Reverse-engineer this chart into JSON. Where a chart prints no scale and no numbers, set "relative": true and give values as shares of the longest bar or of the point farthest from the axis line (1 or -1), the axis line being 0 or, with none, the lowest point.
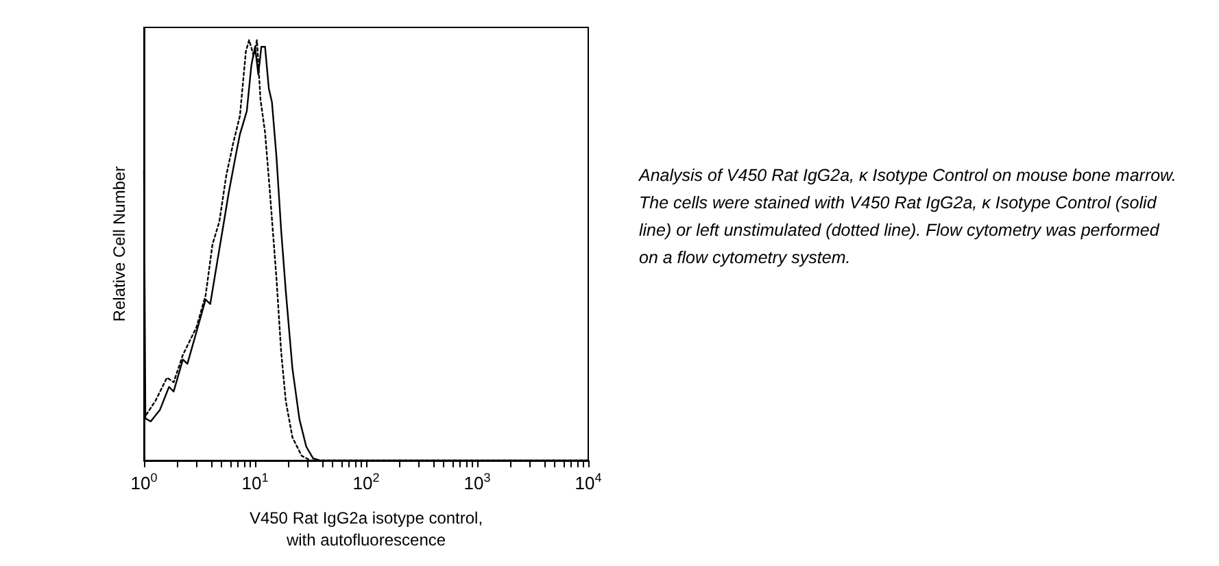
{
  "chart_data": {
    "type": "line",
    "relative": true,
    "log": "x",
    "xlabel": "V450 Rat IgG2a isotype control,\nwith autofluorescence",
    "ylabel": "Relative Cell Number",
    "xlim": [
      1,
      10000
    ],
    "xticks": [
      {
        "value": 1,
        "label": "10$^{0}$"
      },
      {
        "value": 2,
        "label": null
      },
      {
        "value": 3,
        "label": null
      },
      {
        "value": 4,
        "label": null
      },
      {
        "value": 5,
        "label": null
      },
      {
        "value": 6,
        "label": null
      },
      {
        "value": 7,
        "label": null
      },
      {
        "value": 8,
        "label": null
      },
      {
        "value": 9,
        "label": null
      },
      {
        "value": 10,
        "label": "10$^{1}$"
      },
      {
        "value": 20,
        "label": null
      },
      {
        "value": 30,
        "label": null
      },
      {
        "value": 40,
        "label": null
      },
      {
        "value": 50,
        "label": null
      },
      {
        "value": 60,
        "label": null
      },
      {
        "value": 70,
        "label": null
      },
      {
        "value": 80,
        "label": null
      },
      {
        "value": 90,
        "label": null
      },
      {
        "value": 100,
        "label": "10$^{2}$"
      },
      {
        "value": 200,
        "label": null
      },
      {
        "value": 300,
        "label": null
      },
      {
        "value": 400,
        "label": null
      },
      {
        "value": 500,
        "label": null
      },
      {
        "value": 600,
        "label": null
      },
      {
        "value": 700,
        "label": null
      },
      {
        "value": 800,
        "label": null
      },
      {
        "value": 900,
        "label": null
      },
      {
        "value": 1000,
        "label": "10$^{3}$"
      },
      {
        "value": 2000,
        "label": null
      },
      {
        "value": 3000,
        "label": null
      },
      {
        "value": 4000,
        "label": null
      },
      {
        "value": 5000,
        "label": null
      },
      {
        "value": 6000,
        "label": null
      },
      {
        "value": 7000,
        "label": null
      },
      {
        "value": 8000,
        "label": null
      },
      {
        "value": 9000,
        "label": null
      },
      {
        "value": 10000,
        "label": "10$^{4}$"
      }
    ],
    "tick_labels": "x",
    "grid": false,
    "marker": "none",
    "series": [
      {
        "color": "#000000",
        "line_style": "solid",
        "x": [
          1,
          1.03,
          1.15,
          1.39,
          1.68,
          1.85,
          2.24,
          2.46,
          2.97,
          3.59,
          3.95,
          4.55,
          5.25,
          5.77,
          6.65,
          7.31,
          8.43,
          9.27,
          10,
          10.7,
          11.4,
          12.3,
          13.3,
          14.2,
          15.6,
          17.2,
          18.9,
          21.7,
          25.1,
          28.9,
          33.3,
          38.4,
          10000
        ],
        "values": [
          0.69,
          0.1,
          0.093,
          0.12,
          0.175,
          0.164,
          0.24,
          0.23,
          0.306,
          0.383,
          0.372,
          0.47,
          0.568,
          0.634,
          0.721,
          0.776,
          0.831,
          0.94,
          0.984,
          0.918,
          0.984,
          0.984,
          0.885,
          0.852,
          0.721,
          0.546,
          0.404,
          0.219,
          0.098,
          0.033,
          0.005,
          0,
          0
        ]
      },
      {
        "color": "#000000",
        "line_style": "dotted",
        "x": [
          1.05,
          1.27,
          1.61,
          1.85,
          2.24,
          2.97,
          3.59,
          4.14,
          4.77,
          5.51,
          6.35,
          7.31,
          8.27,
          8.85,
          9.72,
          10.4,
          11.2,
          12.3,
          13.5,
          15.6,
          17.2,
          18.9,
          21.7,
          26.3,
          31.8,
          10000
        ],
        "values": [
          0.109,
          0.142,
          0.197,
          0.186,
          0.251,
          0.317,
          0.393,
          0.514,
          0.568,
          0.678,
          0.754,
          0.82,
          0.973,
          1,
          0.962,
          1,
          0.858,
          0.781,
          0.65,
          0.432,
          0.257,
          0.142,
          0.055,
          0.011,
          0,
          0
        ]
      }
    ],
    "annotations": [
      "Analysis of V450 Rat IgG2a, κ Isotype Control on mouse bone marrow. The cells were stained with V450 Rat IgG2a, κ Isotype Control (solid line) or left unstimulated (dotted line). Flow cytometry was performed on a flow cytometry system."
    ]
  }
}
